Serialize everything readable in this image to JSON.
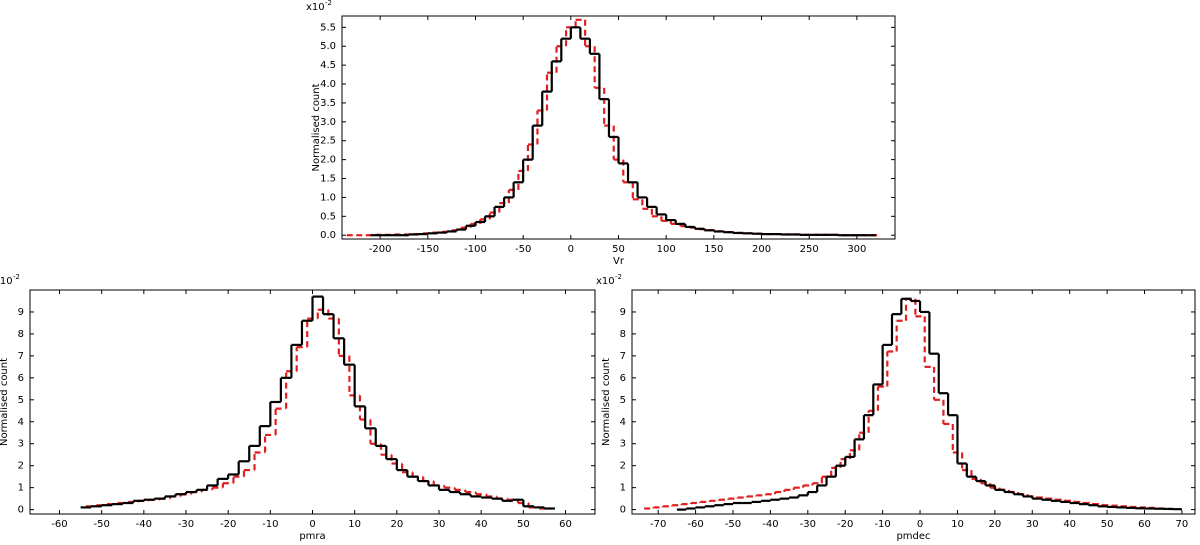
{
  "chart_data": [
    {
      "type": "histogram",
      "xlabel": "Vr",
      "ylabel": "Normalised count",
      "scale_label": "x10",
      "scale_exponent": "-2",
      "xlim": [
        -240,
        340
      ],
      "ylim": [
        -0.1,
        5.8
      ],
      "xticks": [
        -200,
        -150,
        -100,
        -50,
        0,
        50,
        100,
        150,
        200,
        250,
        300
      ],
      "yticks": [
        {
          "value": 0,
          "label": "0.0"
        },
        {
          "value": 0.5,
          "label": "0.5"
        },
        {
          "value": 1,
          "label": "1.0"
        },
        {
          "value": 1.5,
          "label": "1.5"
        },
        {
          "value": 2,
          "label": "2.0"
        },
        {
          "value": 2.5,
          "label": "2.5"
        },
        {
          "value": 3,
          "label": "3.0"
        },
        {
          "value": 3.5,
          "label": "3.5"
        },
        {
          "value": 4,
          "label": "4.0"
        },
        {
          "value": 4.5,
          "label": "4.5"
        },
        {
          "value": 5,
          "label": "5.0"
        },
        {
          "value": 5.5,
          "label": "5.5"
        }
      ],
      "series": [
        {
          "color": "#e02020",
          "style": "dashed",
          "bins": [
            -235,
            -225,
            -215,
            -205,
            -195,
            -185,
            -175,
            -165,
            -155,
            -145,
            -135,
            -125,
            -115,
            -105,
            -95,
            -85,
            -75,
            -65,
            -55,
            -45,
            -35,
            -25,
            -15,
            -5,
            5,
            15,
            25,
            35,
            45,
            55,
            65,
            75,
            85,
            95,
            105,
            115,
            125,
            135,
            145,
            155,
            165,
            175,
            185,
            195,
            205,
            215,
            225,
            235,
            245,
            255,
            265,
            275,
            285,
            295,
            305,
            315,
            325
          ],
          "values": [
            0,
            0,
            0,
            0.01,
            0.01,
            0.02,
            0.02,
            0.03,
            0.05,
            0.07,
            0.09,
            0.13,
            0.2,
            0.3,
            0.42,
            0.6,
            0.85,
            1.2,
            1.7,
            2.4,
            3.3,
            4.3,
            5.0,
            5.5,
            5.7,
            5.0,
            3.9,
            2.9,
            2.0,
            1.4,
            0.95,
            0.7,
            0.5,
            0.38,
            0.3,
            0.24,
            0.2,
            0.16,
            0.13,
            0.1,
            0.08,
            0.06,
            0.05,
            0.04,
            0.03,
            0.03,
            0.02,
            0.02,
            0.01,
            0.01,
            0.01,
            0.01,
            0,
            0,
            0,
            0
          ]
        },
        {
          "color": "#000000",
          "style": "solid",
          "bins": [
            -210,
            -200,
            -190,
            -180,
            -170,
            -160,
            -150,
            -140,
            -130,
            -120,
            -110,
            -100,
            -90,
            -80,
            -70,
            -60,
            -50,
            -40,
            -30,
            -20,
            -10,
            0,
            10,
            20,
            30,
            40,
            50,
            60,
            70,
            80,
            90,
            100,
            110,
            120,
            130,
            140,
            150,
            160,
            170,
            180,
            190,
            200,
            210,
            220,
            230,
            240,
            250,
            260,
            270,
            280,
            290,
            300,
            310,
            320
          ],
          "values": [
            0,
            0,
            0,
            0,
            0.02,
            0.03,
            0.05,
            0.07,
            0.1,
            0.15,
            0.25,
            0.35,
            0.5,
            0.75,
            1.0,
            1.4,
            2.0,
            2.9,
            3.8,
            4.6,
            5.2,
            5.5,
            5.2,
            4.8,
            3.6,
            2.6,
            1.9,
            1.4,
            1.0,
            0.75,
            0.55,
            0.4,
            0.3,
            0.22,
            0.17,
            0.13,
            0.1,
            0.08,
            0.06,
            0.05,
            0.04,
            0.03,
            0.03,
            0.02,
            0.02,
            0.01,
            0.01,
            0.01,
            0.01,
            0,
            0,
            0,
            0
          ]
        }
      ]
    },
    {
      "type": "histogram",
      "xlabel": "pmra",
      "ylabel": "Normalised count",
      "scale_label": "x10",
      "scale_exponent": "-2",
      "xlim": [
        -67,
        67
      ],
      "ylim": [
        -0.2,
        10
      ],
      "xticks": [
        -60,
        -50,
        -40,
        -30,
        -20,
        -10,
        0,
        10,
        20,
        30,
        40,
        50,
        60
      ],
      "yticks": [
        0,
        1,
        2,
        3,
        4,
        5,
        6,
        7,
        8,
        9
      ],
      "series": [
        {
          "color": "#e02020",
          "style": "dashed",
          "bins": [
            -53.75,
            -51.25,
            -48.75,
            -46.25,
            -43.75,
            -41.25,
            -38.75,
            -36.25,
            -33.75,
            -31.25,
            -28.75,
            -26.25,
            -23.75,
            -21.25,
            -18.75,
            -16.25,
            -13.75,
            -11.25,
            -8.75,
            -6.25,
            -3.75,
            -1.25,
            1.25,
            3.75,
            6.25,
            8.75,
            11.25,
            13.75,
            16.25,
            18.75,
            21.25,
            23.75,
            26.25,
            28.75,
            31.25,
            33.75,
            36.25,
            38.75,
            41.25,
            43.75,
            46.25,
            48.75,
            51.25,
            53.75,
            56.25
          ],
          "values": [
            0.15,
            0.2,
            0.25,
            0.3,
            0.35,
            0.4,
            0.45,
            0.5,
            0.6,
            0.7,
            0.8,
            0.9,
            1.0,
            1.2,
            1.5,
            1.8,
            2.6,
            3.4,
            4.6,
            6.3,
            7.4,
            8.7,
            9.1,
            8.7,
            7.0,
            5.2,
            4.1,
            3.0,
            2.5,
            2.1,
            1.7,
            1.5,
            1.3,
            1.1,
            1.0,
            0.9,
            0.8,
            0.7,
            0.6,
            0.5,
            0.45,
            0.3,
            0.1,
            0.05
          ]
        },
        {
          "color": "#000000",
          "style": "solid",
          "bins": [
            -55,
            -52.5,
            -50,
            -47.5,
            -45,
            -42.5,
            -40,
            -37.5,
            -35,
            -32.5,
            -30,
            -27.5,
            -25,
            -22.5,
            -20,
            -17.5,
            -15,
            -12.5,
            -10,
            -7.5,
            -5,
            -2.5,
            0,
            2.5,
            5,
            7.5,
            10,
            12.5,
            15,
            17.5,
            20,
            22.5,
            25,
            27.5,
            30,
            32.5,
            35,
            37.5,
            40,
            42.5,
            45,
            47.5,
            50,
            52.5,
            55,
            57.5
          ],
          "values": [
            0.1,
            0.15,
            0.2,
            0.25,
            0.3,
            0.4,
            0.45,
            0.5,
            0.6,
            0.7,
            0.8,
            0.9,
            1.1,
            1.4,
            1.6,
            2.2,
            2.9,
            3.8,
            4.9,
            6.0,
            7.5,
            8.6,
            9.7,
            8.9,
            7.8,
            6.6,
            4.7,
            3.7,
            2.9,
            2.3,
            1.8,
            1.5,
            1.3,
            1.1,
            0.9,
            0.8,
            0.7,
            0.6,
            0.55,
            0.5,
            0.4,
            0.45,
            0.15,
            0.1,
            0.05
          ]
        }
      ]
    },
    {
      "type": "histogram",
      "xlabel": "pmdec",
      "ylabel": "Normalised count",
      "scale_label": "x10",
      "scale_exponent": "-2",
      "xlim": [
        -77,
        73.5
      ],
      "ylim": [
        -0.2,
        10
      ],
      "xticks": [
        -70,
        -60,
        -50,
        -40,
        -30,
        -20,
        -10,
        0,
        10,
        20,
        30,
        40,
        50,
        60,
        70
      ],
      "yticks": [
        0,
        1,
        2,
        3,
        4,
        5,
        6,
        7,
        8,
        9
      ],
      "series": [
        {
          "color": "#e02020",
          "style": "dashed",
          "bins": [
            -73.75,
            -71.25,
            -68.75,
            -66.25,
            -63.75,
            -61.25,
            -58.75,
            -56.25,
            -53.75,
            -51.25,
            -48.75,
            -46.25,
            -43.75,
            -41.25,
            -38.75,
            -36.25,
            -33.75,
            -31.25,
            -28.75,
            -26.25,
            -23.75,
            -21.25,
            -18.75,
            -16.25,
            -13.75,
            -11.25,
            -8.75,
            -6.25,
            -3.75,
            -1.25,
            1.25,
            3.75,
            6.25,
            8.75,
            11.25,
            13.75,
            16.25,
            18.75,
            21.25,
            23.75,
            26.25,
            28.75,
            31.25,
            33.75,
            36.25,
            38.75,
            41.25,
            43.75,
            46.25,
            48.75,
            51.25,
            53.75,
            56.25,
            58.75,
            61.25,
            63.75,
            66.25,
            68.75
          ],
          "values": [
            0.05,
            0.1,
            0.15,
            0.2,
            0.25,
            0.3,
            0.35,
            0.4,
            0.45,
            0.5,
            0.55,
            0.6,
            0.65,
            0.7,
            0.8,
            0.9,
            1.0,
            1.1,
            1.2,
            1.5,
            1.9,
            2.3,
            2.7,
            3.5,
            4.5,
            5.6,
            7.2,
            8.6,
            9.6,
            8.8,
            6.5,
            5.0,
            3.9,
            2.6,
            1.8,
            1.4,
            1.2,
            1.0,
            0.9,
            0.8,
            0.7,
            0.6,
            0.55,
            0.5,
            0.45,
            0.4,
            0.35,
            0.3,
            0.25,
            0.2,
            0.18,
            0.15,
            0.12,
            0.1,
            0.08,
            0.05,
            0.03
          ]
        },
        {
          "color": "#000000",
          "style": "solid",
          "bins": [
            -65,
            -62.5,
            -60,
            -57.5,
            -55,
            -52.5,
            -50,
            -47.5,
            -45,
            -42.5,
            -40,
            -37.5,
            -35,
            -32.5,
            -30,
            -27.5,
            -25,
            -22.5,
            -20,
            -17.5,
            -15,
            -12.5,
            -10,
            -7.5,
            -5,
            -2.5,
            0,
            2.5,
            5,
            7.5,
            10,
            12.5,
            15,
            17.5,
            20,
            22.5,
            25,
            27.5,
            30,
            32.5,
            35,
            37.5,
            40,
            42.5,
            45,
            47.5,
            50,
            52.5,
            55,
            57.5,
            60,
            62.5,
            65,
            67.5,
            70
          ],
          "values": [
            0,
            0.05,
            0.1,
            0.15,
            0.2,
            0.25,
            0.3,
            0.3,
            0.35,
            0.4,
            0.45,
            0.5,
            0.55,
            0.65,
            0.8,
            1.1,
            1.5,
            2.0,
            2.4,
            3.2,
            4.3,
            5.7,
            7.5,
            8.9,
            9.6,
            9.5,
            9.0,
            7.1,
            5.3,
            4.3,
            2.1,
            1.5,
            1.3,
            1.1,
            0.9,
            0.8,
            0.7,
            0.6,
            0.5,
            0.45,
            0.4,
            0.35,
            0.3,
            0.25,
            0.2,
            0.15,
            0.12,
            0.1,
            0.08,
            0.06,
            0.05,
            0.04,
            0.03,
            0.02
          ]
        }
      ]
    }
  ]
}
